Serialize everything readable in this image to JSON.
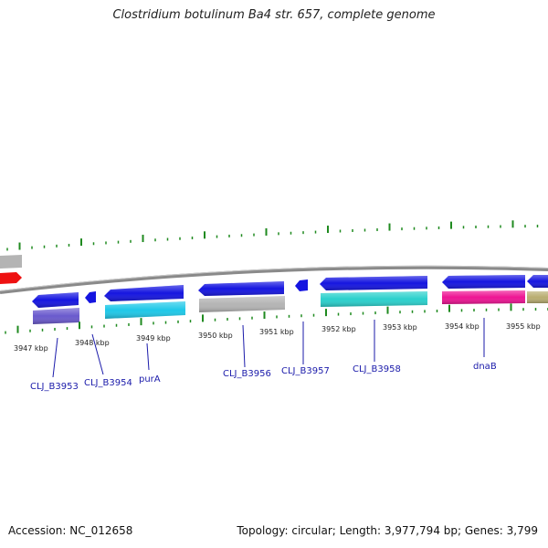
{
  "title": "Clostridium botulinum Ba4 str. 657, complete genome",
  "footer": {
    "accession": "Accession: NC_012658",
    "topology": "Topology: circular; Length: 3,977,794 bp; Genes: 3,799"
  },
  "colors": {
    "backbone": "#8a8a8a",
    "tick": "#1f8a1f",
    "label": "#1a1aaa",
    "cds_blue": "#1515e0",
    "purple": "#6a5acd",
    "cyan": "#1ec8e8",
    "gray": "#b4b4b4",
    "turquoise": "#2ad0cc",
    "magenta": "#ee1493",
    "olive": "#b8ad70",
    "red": "#ee1111"
  },
  "kbp_labels": [
    "3947 kbp",
    "3948 kbp",
    "3949 kbp",
    "3950 kbp",
    "3951 kbp",
    "3952 kbp",
    "3953 kbp",
    "3954 kbp",
    "3955 kbp"
  ],
  "genes": [
    "CLJ_B3953",
    "CLJ_B3954",
    "purA",
    "CLJ_B3956",
    "CLJ_B3957",
    "CLJ_B3958",
    "dnaB"
  ]
}
